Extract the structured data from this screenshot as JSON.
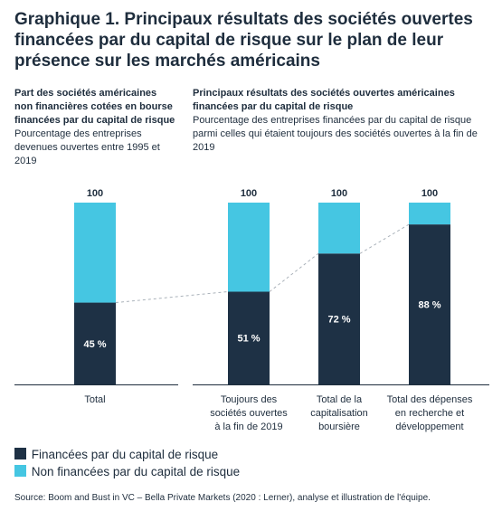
{
  "title": "Graphique 1. Principaux résultats des sociétés ouvertes financées par du capital de risque sur le plan de leur présence sur les marchés américains",
  "left_panel": {
    "heading": "Part des sociétés américaines non financières cotées en bourse financées par du capital de risque",
    "subheading": "Pourcentage des entreprises devenues ouvertes entre 1995 et 2019"
  },
  "right_panel": {
    "heading": "Principaux résultats des sociétés ouvertes américaines financées par du capital de risque",
    "subheading": "Pourcentage des entreprises financées par du capital de risque parmi celles qui étaient toujours des sociétés ouvertes à la fin de 2019"
  },
  "colors": {
    "vc": "#1e3145",
    "non_vc": "#45c6e2",
    "connector": "#aab2ba",
    "axis": "#1e2d3d"
  },
  "chart_data": {
    "type": "bar",
    "stacked": true,
    "categories": [
      "Total",
      "Toujours des sociétés ouvertes à la fin de 2019",
      "Total de la capitalisation boursière",
      "Total des dépenses en recherche et développement"
    ],
    "category_lines": [
      [
        "Total"
      ],
      [
        "Toujours des",
        "sociétés ouvertes",
        "à la fin de 2019"
      ],
      [
        "Total de la",
        "capitalisation",
        "boursière"
      ],
      [
        "Total des dépenses",
        "en recherche et",
        "développement"
      ]
    ],
    "series": [
      {
        "name": "Financées par du capital de risque",
        "values": [
          45,
          51,
          72,
          88
        ]
      },
      {
        "name": "Non financées par du capital de risque",
        "values": [
          55,
          49,
          28,
          12
        ]
      }
    ],
    "value_labels": [
      "45 %",
      "51 %",
      "72 %",
      "88 %"
    ],
    "total_labels": [
      "100",
      "100",
      "100",
      "100"
    ],
    "ylim": [
      0,
      100
    ]
  },
  "legend": {
    "vc_label": "Financées par du capital de risque",
    "non_vc_label": "Non financées par du capital de risque"
  },
  "source": "Source: Boom and Bust in VC – Bella Private Markets (2020 : Lerner), analyse et illustration de l'équipe."
}
